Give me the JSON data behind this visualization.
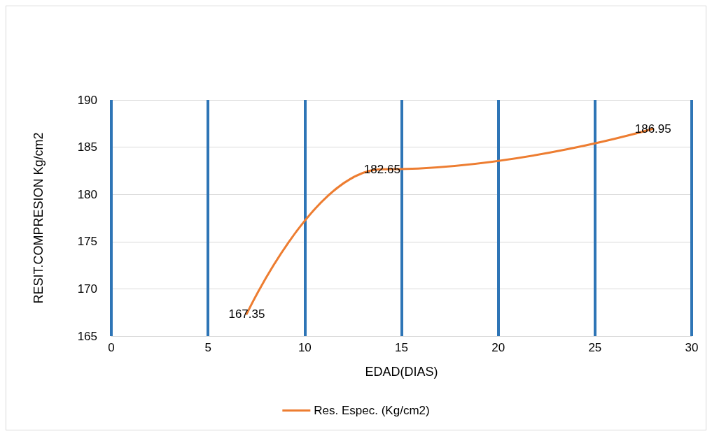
{
  "chart_data": {
    "type": "line",
    "xlabel": "EDAD(DIAS)",
    "ylabel": "RESIT.COMPRESION Kg/cm2",
    "x": [
      7,
      14,
      28
    ],
    "series": [
      {
        "name": "Res. Espec. (Kg/cm2)",
        "color": "#ed7d31",
        "values": [
          167.35,
          182.65,
          186.95
        ]
      }
    ],
    "xlim": [
      0,
      30
    ],
    "xticks": [
      0,
      5,
      10,
      15,
      20,
      25,
      30
    ],
    "ylim": [
      165,
      190
    ],
    "yticks": [
      165,
      170,
      175,
      180,
      185,
      190
    ],
    "grid": true,
    "legend": "bottom",
    "marker": "none",
    "line_style": "solid",
    "data_labels": true
  }
}
